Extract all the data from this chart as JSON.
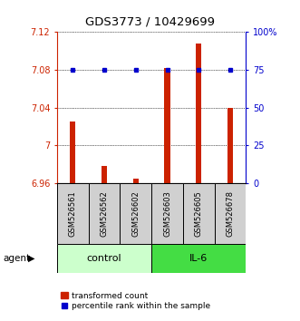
{
  "title": "GDS3773 / 10429699",
  "samples": [
    "GSM526561",
    "GSM526562",
    "GSM526602",
    "GSM526603",
    "GSM526605",
    "GSM526678"
  ],
  "red_values": [
    7.025,
    6.978,
    6.965,
    7.082,
    7.108,
    7.04
  ],
  "blue_values": [
    75,
    75,
    75,
    75,
    75,
    75
  ],
  "ylim_left": [
    6.96,
    7.12
  ],
  "ylim_right": [
    0,
    100
  ],
  "yticks_left": [
    6.96,
    7.0,
    7.04,
    7.08,
    7.12
  ],
  "ytick_labels_left": [
    "6.96",
    "7",
    "7.04",
    "7.08",
    "7.12"
  ],
  "yticks_right": [
    0,
    25,
    50,
    75,
    100
  ],
  "ytick_labels_right": [
    "0",
    "25",
    "50",
    "75",
    "100%"
  ],
  "groups": [
    {
      "label": "control",
      "indices": [
        0,
        1,
        2
      ],
      "color": "#ccffcc"
    },
    {
      "label": "IL-6",
      "indices": [
        3,
        4,
        5
      ],
      "color": "#44dd44"
    }
  ],
  "bar_color": "#cc2200",
  "dot_color": "#0000cc",
  "bar_width": 0.18,
  "legend_red_label": "transformed count",
  "legend_blue_label": "percentile rank within the sample"
}
